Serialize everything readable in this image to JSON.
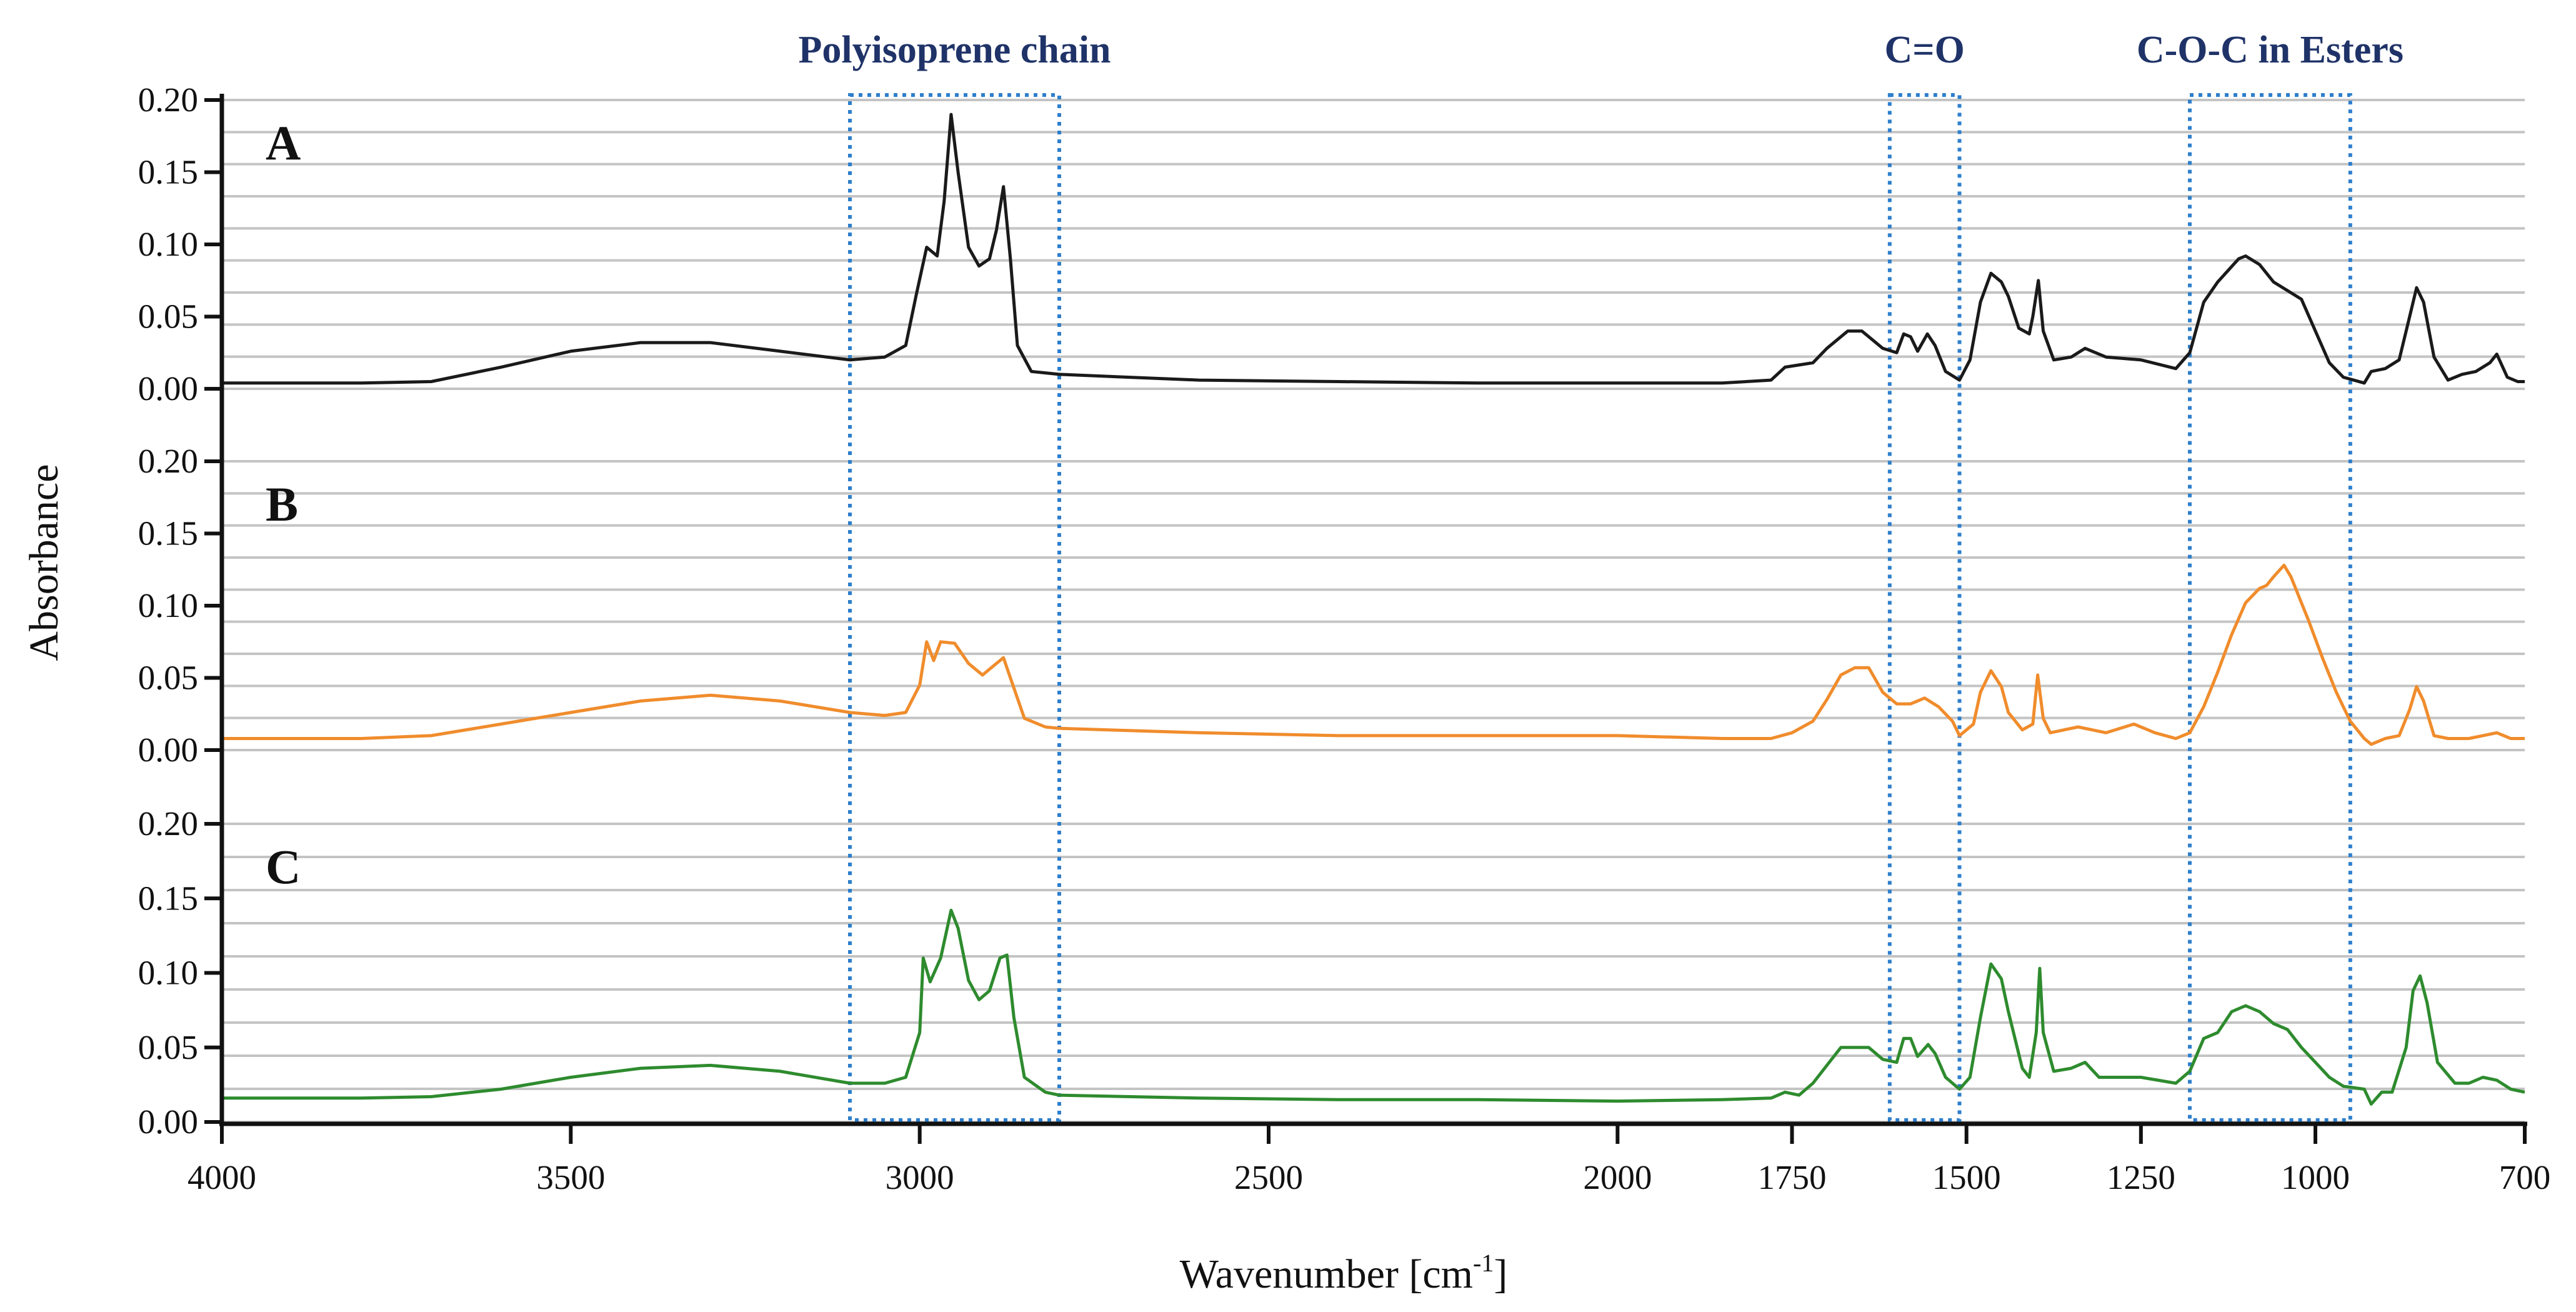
{
  "chart_data": {
    "type": "line",
    "title": "",
    "xlabel": "Wavenumber [cm",
    "xlabel_superscript": "-1",
    "xlabel_suffix": "]",
    "ylabel": "Absorbance",
    "xlim": [
      4000,
      700
    ],
    "x_reversed": true,
    "x_ticks": [
      4000,
      3500,
      3000,
      2500,
      2000,
      1750,
      1500,
      1250,
      1000,
      700
    ],
    "panel_ylim": [
      0,
      0.2
    ],
    "y_ticks": [
      "0.00",
      "0.05",
      "0.10",
      "0.15",
      "0.20"
    ],
    "grid": true,
    "regions": [
      {
        "label": "Polyisoprene chain",
        "x_range": [
          3100,
          2800
        ],
        "color": "#2e7fcc"
      },
      {
        "label": "C=O",
        "x_range": [
          1610,
          1510
        ],
        "color": "#2e7fcc"
      },
      {
        "label": "C-O-C in Esters",
        "x_range": [
          1180,
          950
        ],
        "color": "#2e7fcc"
      }
    ],
    "series": [
      {
        "name": "A",
        "color": "#1a1a1a",
        "points": [
          [
            4000,
            0.004
          ],
          [
            3800,
            0.004
          ],
          [
            3700,
            0.005
          ],
          [
            3600,
            0.015
          ],
          [
            3500,
            0.026
          ],
          [
            3400,
            0.032
          ],
          [
            3300,
            0.032
          ],
          [
            3200,
            0.026
          ],
          [
            3100,
            0.02
          ],
          [
            3050,
            0.022
          ],
          [
            3020,
            0.03
          ],
          [
            3005,
            0.065
          ],
          [
            2990,
            0.098
          ],
          [
            2975,
            0.092
          ],
          [
            2965,
            0.13
          ],
          [
            2955,
            0.19
          ],
          [
            2945,
            0.15
          ],
          [
            2930,
            0.098
          ],
          [
            2915,
            0.085
          ],
          [
            2900,
            0.09
          ],
          [
            2890,
            0.11
          ],
          [
            2880,
            0.14
          ],
          [
            2870,
            0.09
          ],
          [
            2860,
            0.03
          ],
          [
            2840,
            0.012
          ],
          [
            2800,
            0.01
          ],
          [
            2600,
            0.006
          ],
          [
            2400,
            0.005
          ],
          [
            2200,
            0.004
          ],
          [
            2000,
            0.004
          ],
          [
            1850,
            0.004
          ],
          [
            1780,
            0.006
          ],
          [
            1760,
            0.015
          ],
          [
            1720,
            0.018
          ],
          [
            1700,
            0.028
          ],
          [
            1670,
            0.04
          ],
          [
            1650,
            0.04
          ],
          [
            1620,
            0.028
          ],
          [
            1600,
            0.025
          ],
          [
            1590,
            0.038
          ],
          [
            1580,
            0.036
          ],
          [
            1570,
            0.026
          ],
          [
            1556,
            0.038
          ],
          [
            1545,
            0.03
          ],
          [
            1530,
            0.012
          ],
          [
            1510,
            0.006
          ],
          [
            1495,
            0.02
          ],
          [
            1480,
            0.06
          ],
          [
            1465,
            0.08
          ],
          [
            1450,
            0.074
          ],
          [
            1440,
            0.064
          ],
          [
            1425,
            0.042
          ],
          [
            1410,
            0.038
          ],
          [
            1405,
            0.05
          ],
          [
            1397,
            0.075
          ],
          [
            1390,
            0.04
          ],
          [
            1375,
            0.02
          ],
          [
            1350,
            0.022
          ],
          [
            1330,
            0.028
          ],
          [
            1300,
            0.022
          ],
          [
            1250,
            0.02
          ],
          [
            1200,
            0.014
          ],
          [
            1180,
            0.025
          ],
          [
            1160,
            0.06
          ],
          [
            1140,
            0.074
          ],
          [
            1110,
            0.09
          ],
          [
            1100,
            0.092
          ],
          [
            1080,
            0.086
          ],
          [
            1060,
            0.074
          ],
          [
            1040,
            0.068
          ],
          [
            1020,
            0.062
          ],
          [
            1000,
            0.04
          ],
          [
            980,
            0.018
          ],
          [
            960,
            0.008
          ],
          [
            930,
            0.004
          ],
          [
            920,
            0.012
          ],
          [
            900,
            0.014
          ],
          [
            880,
            0.02
          ],
          [
            865,
            0.05
          ],
          [
            855,
            0.07
          ],
          [
            845,
            0.06
          ],
          [
            830,
            0.022
          ],
          [
            810,
            0.006
          ],
          [
            790,
            0.01
          ],
          [
            770,
            0.012
          ],
          [
            750,
            0.018
          ],
          [
            740,
            0.024
          ],
          [
            725,
            0.008
          ],
          [
            710,
            0.005
          ],
          [
            700,
            0.005
          ]
        ]
      },
      {
        "name": "B",
        "color": "#f08c2c",
        "points": [
          [
            4000,
            0.008
          ],
          [
            3800,
            0.008
          ],
          [
            3700,
            0.01
          ],
          [
            3600,
            0.018
          ],
          [
            3500,
            0.026
          ],
          [
            3400,
            0.034
          ],
          [
            3300,
            0.038
          ],
          [
            3200,
            0.034
          ],
          [
            3100,
            0.026
          ],
          [
            3050,
            0.024
          ],
          [
            3020,
            0.026
          ],
          [
            3000,
            0.045
          ],
          [
            2990,
            0.075
          ],
          [
            2980,
            0.062
          ],
          [
            2970,
            0.075
          ],
          [
            2950,
            0.074
          ],
          [
            2930,
            0.06
          ],
          [
            2910,
            0.052
          ],
          [
            2895,
            0.058
          ],
          [
            2880,
            0.064
          ],
          [
            2870,
            0.05
          ],
          [
            2850,
            0.022
          ],
          [
            2820,
            0.016
          ],
          [
            2800,
            0.015
          ],
          [
            2600,
            0.012
          ],
          [
            2400,
            0.01
          ],
          [
            2200,
            0.01
          ],
          [
            2000,
            0.01
          ],
          [
            1850,
            0.008
          ],
          [
            1780,
            0.008
          ],
          [
            1750,
            0.012
          ],
          [
            1720,
            0.02
          ],
          [
            1700,
            0.035
          ],
          [
            1680,
            0.052
          ],
          [
            1660,
            0.057
          ],
          [
            1640,
            0.057
          ],
          [
            1620,
            0.04
          ],
          [
            1600,
            0.032
          ],
          [
            1580,
            0.032
          ],
          [
            1560,
            0.036
          ],
          [
            1540,
            0.03
          ],
          [
            1520,
            0.02
          ],
          [
            1510,
            0.01
          ],
          [
            1490,
            0.018
          ],
          [
            1480,
            0.04
          ],
          [
            1465,
            0.055
          ],
          [
            1450,
            0.044
          ],
          [
            1440,
            0.026
          ],
          [
            1420,
            0.014
          ],
          [
            1405,
            0.018
          ],
          [
            1398,
            0.052
          ],
          [
            1390,
            0.022
          ],
          [
            1380,
            0.012
          ],
          [
            1340,
            0.016
          ],
          [
            1300,
            0.012
          ],
          [
            1260,
            0.018
          ],
          [
            1230,
            0.012
          ],
          [
            1200,
            0.008
          ],
          [
            1180,
            0.012
          ],
          [
            1160,
            0.03
          ],
          [
            1140,
            0.054
          ],
          [
            1120,
            0.08
          ],
          [
            1100,
            0.102
          ],
          [
            1080,
            0.112
          ],
          [
            1070,
            0.114
          ],
          [
            1060,
            0.12
          ],
          [
            1045,
            0.128
          ],
          [
            1035,
            0.12
          ],
          [
            1010,
            0.09
          ],
          [
            990,
            0.064
          ],
          [
            970,
            0.04
          ],
          [
            950,
            0.02
          ],
          [
            930,
            0.008
          ],
          [
            920,
            0.004
          ],
          [
            900,
            0.008
          ],
          [
            880,
            0.01
          ],
          [
            865,
            0.028
          ],
          [
            855,
            0.044
          ],
          [
            845,
            0.034
          ],
          [
            830,
            0.01
          ],
          [
            810,
            0.008
          ],
          [
            780,
            0.008
          ],
          [
            760,
            0.01
          ],
          [
            740,
            0.012
          ],
          [
            720,
            0.008
          ],
          [
            700,
            0.008
          ]
        ]
      },
      {
        "name": "C",
        "color": "#2e8b2e",
        "points": [
          [
            4000,
            0.016
          ],
          [
            3800,
            0.016
          ],
          [
            3700,
            0.017
          ],
          [
            3600,
            0.022
          ],
          [
            3500,
            0.03
          ],
          [
            3400,
            0.036
          ],
          [
            3300,
            0.038
          ],
          [
            3200,
            0.034
          ],
          [
            3100,
            0.026
          ],
          [
            3050,
            0.026
          ],
          [
            3020,
            0.03
          ],
          [
            3000,
            0.06
          ],
          [
            2995,
            0.11
          ],
          [
            2985,
            0.094
          ],
          [
            2970,
            0.11
          ],
          [
            2955,
            0.142
          ],
          [
            2945,
            0.13
          ],
          [
            2930,
            0.095
          ],
          [
            2915,
            0.082
          ],
          [
            2900,
            0.088
          ],
          [
            2885,
            0.11
          ],
          [
            2875,
            0.112
          ],
          [
            2865,
            0.07
          ],
          [
            2850,
            0.03
          ],
          [
            2820,
            0.02
          ],
          [
            2800,
            0.018
          ],
          [
            2600,
            0.016
          ],
          [
            2400,
            0.015
          ],
          [
            2200,
            0.015
          ],
          [
            2000,
            0.014
          ],
          [
            1850,
            0.015
          ],
          [
            1780,
            0.016
          ],
          [
            1760,
            0.02
          ],
          [
            1740,
            0.018
          ],
          [
            1720,
            0.026
          ],
          [
            1700,
            0.038
          ],
          [
            1680,
            0.05
          ],
          [
            1660,
            0.05
          ],
          [
            1640,
            0.05
          ],
          [
            1620,
            0.042
          ],
          [
            1600,
            0.04
          ],
          [
            1590,
            0.056
          ],
          [
            1580,
            0.056
          ],
          [
            1570,
            0.044
          ],
          [
            1555,
            0.052
          ],
          [
            1545,
            0.046
          ],
          [
            1530,
            0.03
          ],
          [
            1510,
            0.022
          ],
          [
            1495,
            0.03
          ],
          [
            1480,
            0.07
          ],
          [
            1465,
            0.106
          ],
          [
            1450,
            0.096
          ],
          [
            1440,
            0.074
          ],
          [
            1420,
            0.036
          ],
          [
            1410,
            0.03
          ],
          [
            1400,
            0.06
          ],
          [
            1395,
            0.103
          ],
          [
            1390,
            0.06
          ],
          [
            1375,
            0.034
          ],
          [
            1350,
            0.036
          ],
          [
            1330,
            0.04
          ],
          [
            1310,
            0.03
          ],
          [
            1250,
            0.03
          ],
          [
            1200,
            0.026
          ],
          [
            1180,
            0.034
          ],
          [
            1160,
            0.056
          ],
          [
            1140,
            0.06
          ],
          [
            1120,
            0.074
          ],
          [
            1100,
            0.078
          ],
          [
            1080,
            0.074
          ],
          [
            1060,
            0.066
          ],
          [
            1040,
            0.062
          ],
          [
            1020,
            0.05
          ],
          [
            1000,
            0.04
          ],
          [
            980,
            0.03
          ],
          [
            960,
            0.024
          ],
          [
            930,
            0.022
          ],
          [
            920,
            0.012
          ],
          [
            905,
            0.02
          ],
          [
            890,
            0.02
          ],
          [
            870,
            0.05
          ],
          [
            860,
            0.088
          ],
          [
            850,
            0.098
          ],
          [
            840,
            0.08
          ],
          [
            825,
            0.04
          ],
          [
            800,
            0.026
          ],
          [
            780,
            0.026
          ],
          [
            760,
            0.03
          ],
          [
            740,
            0.028
          ],
          [
            720,
            0.022
          ],
          [
            700,
            0.02
          ]
        ]
      }
    ]
  }
}
